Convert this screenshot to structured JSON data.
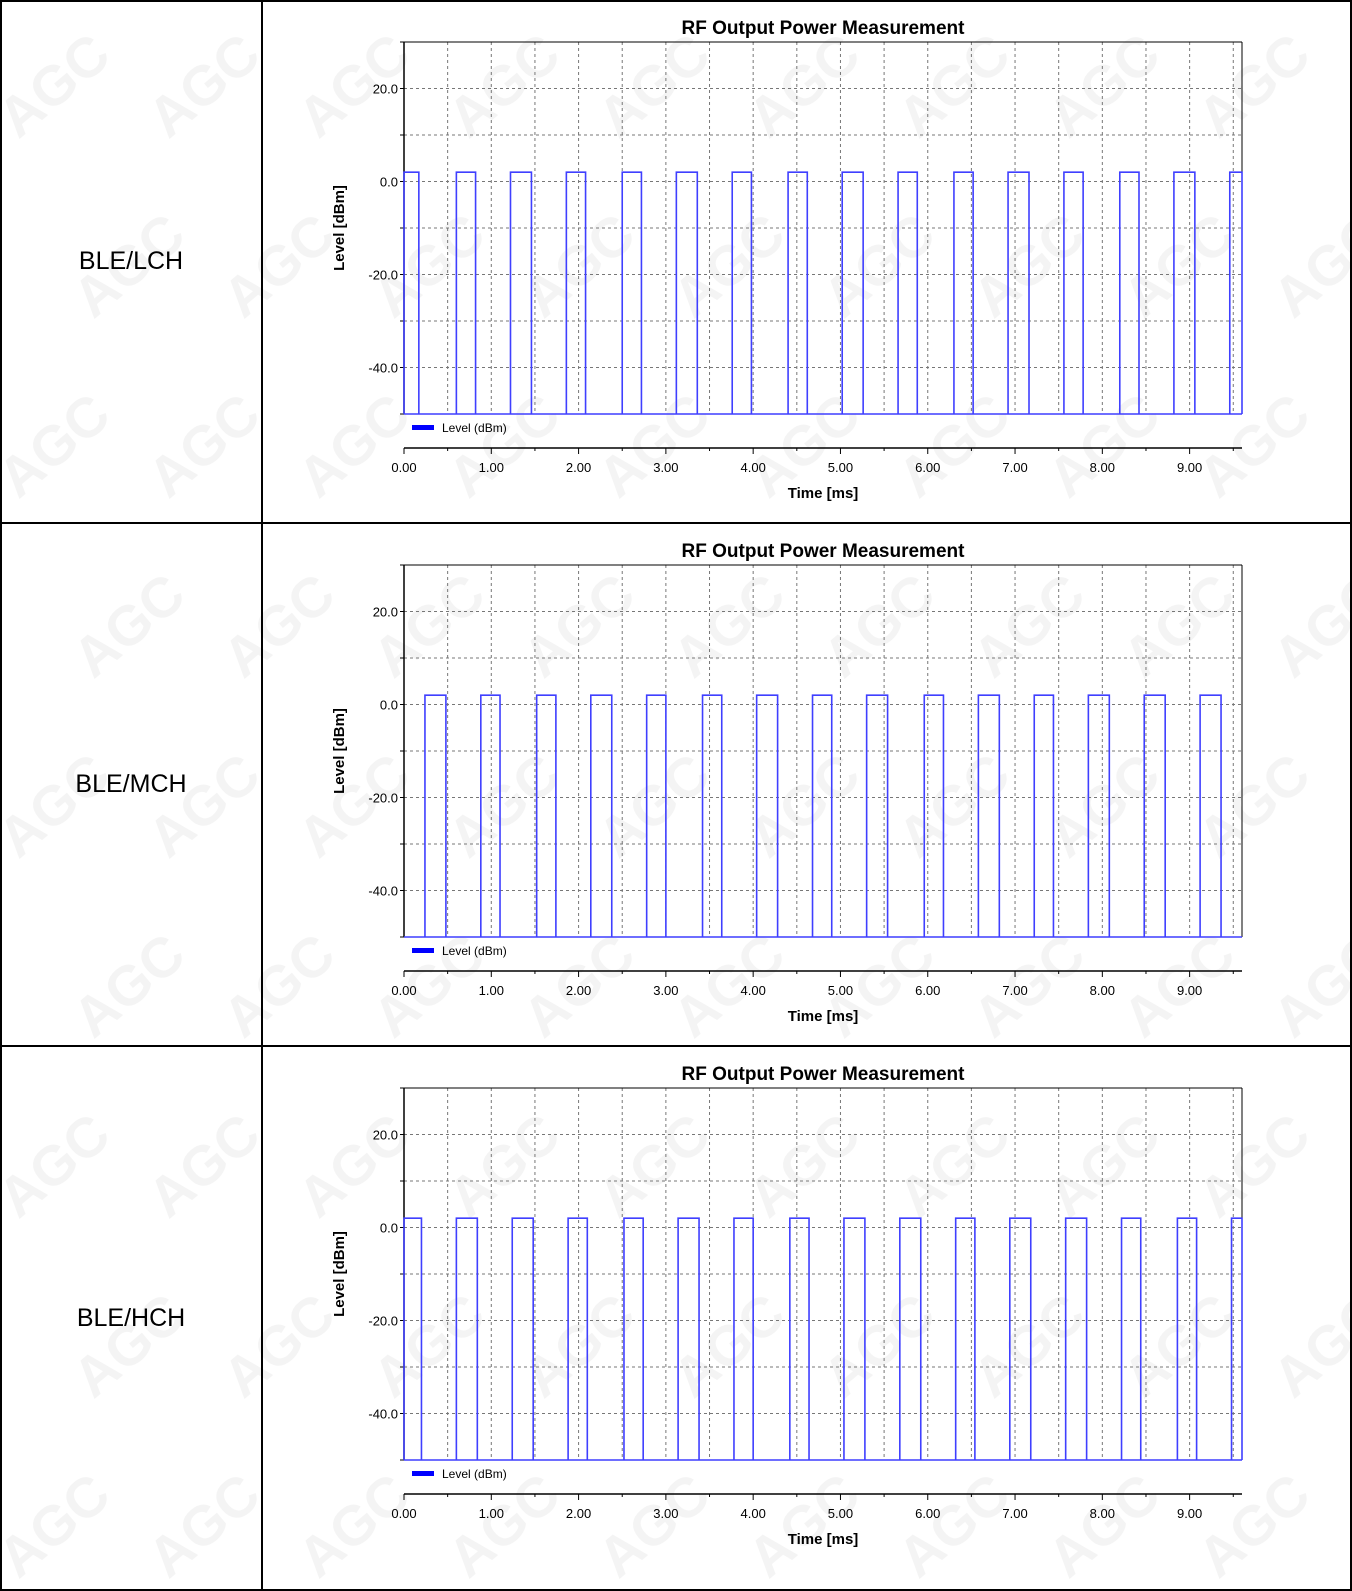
{
  "rows": [
    {
      "label": "BLE/LCH"
    },
    {
      "label": "BLE/MCH"
    },
    {
      "label": "BLE/HCH"
    }
  ],
  "watermark_text": "AGC",
  "chart_data": [
    {
      "type": "line",
      "title": "RF Output Power Measurement",
      "xlabel": "Time [ms]",
      "ylabel": "Level [dBm]",
      "xlim": [
        0,
        9.6
      ],
      "ylim": [
        -50,
        30
      ],
      "xticks": [
        "0.00",
        "1.00",
        "2.00",
        "3.00",
        "4.00",
        "5.00",
        "6.00",
        "7.00",
        "8.00",
        "9.00"
      ],
      "yticks": [
        "20.0",
        "0.0",
        "-20.0",
        "-40.0"
      ],
      "grid": true,
      "legend_position": "bottom-left",
      "series": [
        {
          "name": "Level (dBm)",
          "color": "#3f3fff",
          "pulse_high": 2,
          "pulse_low": -50,
          "pulses": [
            [
              0.0,
              0.17
            ],
            [
              0.6,
              0.82
            ],
            [
              1.22,
              1.46
            ],
            [
              1.86,
              2.08
            ],
            [
              2.5,
              2.72
            ],
            [
              3.12,
              3.36
            ],
            [
              3.76,
              3.98
            ],
            [
              4.4,
              4.62
            ],
            [
              5.02,
              5.26
            ],
            [
              5.66,
              5.88
            ],
            [
              6.3,
              6.52
            ],
            [
              6.92,
              7.16
            ],
            [
              7.56,
              7.78
            ],
            [
              8.2,
              8.42
            ],
            [
              8.82,
              9.06
            ],
            [
              9.46,
              9.6
            ]
          ]
        }
      ]
    },
    {
      "type": "line",
      "title": "RF Output Power Measurement",
      "xlabel": "Time [ms]",
      "ylabel": "Level [dBm]",
      "xlim": [
        0,
        9.6
      ],
      "ylim": [
        -50,
        30
      ],
      "xticks": [
        "0.00",
        "1.00",
        "2.00",
        "3.00",
        "4.00",
        "5.00",
        "6.00",
        "7.00",
        "8.00",
        "9.00"
      ],
      "yticks": [
        "20.0",
        "0.0",
        "-20.0",
        "-40.0"
      ],
      "grid": true,
      "legend_position": "bottom-left",
      "series": [
        {
          "name": "Level (dBm)",
          "color": "#3f3fff",
          "pulse_high": 2,
          "pulse_low": -50,
          "pulses": [
            [
              0.24,
              0.48
            ],
            [
              0.88,
              1.1
            ],
            [
              1.52,
              1.74
            ],
            [
              2.14,
              2.38
            ],
            [
              2.78,
              3.0
            ],
            [
              3.42,
              3.64
            ],
            [
              4.04,
              4.28
            ],
            [
              4.68,
              4.9
            ],
            [
              5.3,
              5.54
            ],
            [
              5.96,
              6.18
            ],
            [
              6.58,
              6.82
            ],
            [
              7.22,
              7.44
            ],
            [
              7.84,
              8.08
            ],
            [
              8.48,
              8.72
            ],
            [
              9.12,
              9.36
            ]
          ]
        }
      ]
    },
    {
      "type": "line",
      "title": "RF Output Power Measurement",
      "xlabel": "Time [ms]",
      "ylabel": "Level [dBm]",
      "xlim": [
        0,
        9.6
      ],
      "ylim": [
        -50,
        30
      ],
      "xticks": [
        "0.00",
        "1.00",
        "2.00",
        "3.00",
        "4.00",
        "5.00",
        "6.00",
        "7.00",
        "8.00",
        "9.00"
      ],
      "yticks": [
        "20.0",
        "0.0",
        "-20.0",
        "-40.0"
      ],
      "grid": true,
      "legend_position": "bottom-left",
      "series": [
        {
          "name": "Level (dBm)",
          "color": "#3f3fff",
          "pulse_high": 2,
          "pulse_low": -50,
          "pulses": [
            [
              0.0,
              0.2
            ],
            [
              0.6,
              0.84
            ],
            [
              1.24,
              1.48
            ],
            [
              1.88,
              2.1
            ],
            [
              2.52,
              2.74
            ],
            [
              3.14,
              3.38
            ],
            [
              3.78,
              4.0
            ],
            [
              4.42,
              4.64
            ],
            [
              5.04,
              5.28
            ],
            [
              5.68,
              5.92
            ],
            [
              6.32,
              6.54
            ],
            [
              6.94,
              7.18
            ],
            [
              7.58,
              7.82
            ],
            [
              8.22,
              8.44
            ],
            [
              8.86,
              9.08
            ],
            [
              9.48,
              9.6
            ]
          ]
        }
      ]
    }
  ]
}
